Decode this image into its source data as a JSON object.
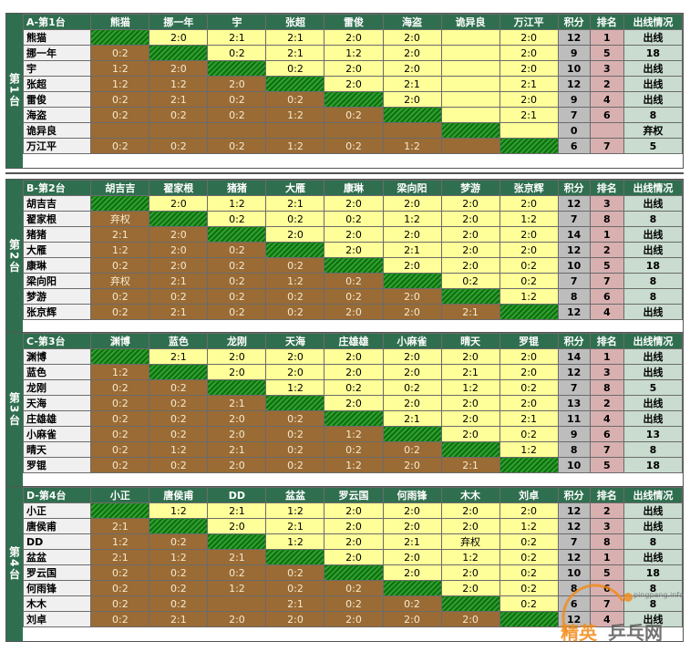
{
  "headers": {
    "points": "积分",
    "rank": "排名",
    "status": "出线情况"
  },
  "groups": [
    {
      "label": "A-第1台",
      "table_label": "第1台",
      "players": [
        "熊猫",
        "挪一年",
        "宇",
        "张超",
        "雷俊",
        "海盗",
        "诡异良",
        "万江平"
      ],
      "cells": [
        [
          "",
          "2:0",
          "2:1",
          "2:1",
          "2:0",
          "2:0",
          "",
          "2:0"
        ],
        [
          "0:2",
          "",
          "0:2",
          "2:1",
          "1:2",
          "2:0",
          "",
          "2:0"
        ],
        [
          "1:2",
          "2:0",
          "",
          "0:2",
          "2:0",
          "2:0",
          "",
          "2:0"
        ],
        [
          "1:2",
          "1:2",
          "2:0",
          "",
          "2:0",
          "2:1",
          "",
          "2:1"
        ],
        [
          "0:2",
          "2:1",
          "0:2",
          "0:2",
          "",
          "2:0",
          "",
          "2:0"
        ],
        [
          "0:2",
          "0:2",
          "0:2",
          "1:2",
          "0:2",
          "",
          "",
          "2:1"
        ],
        [
          "",
          "",
          "",
          "",
          "",
          "",
          "",
          ""
        ],
        [
          "0:2",
          "0:2",
          "0:2",
          "1:2",
          "0:2",
          "1:2",
          "",
          ""
        ]
      ],
      "points": [
        "12",
        "9",
        "10",
        "12",
        "9",
        "7",
        "0",
        "6"
      ],
      "ranks": [
        "1",
        "5",
        "3",
        "2",
        "4",
        "6",
        "",
        "7"
      ],
      "status": [
        "出线",
        "18",
        "出线",
        "出线",
        "出线",
        "8",
        "弃权",
        "5"
      ]
    },
    {
      "label": "B-第2台",
      "table_label": "第2台",
      "players": [
        "胡吉吉",
        "翟家根",
        "猪猪",
        "大雁",
        "康琳",
        "梁向阳",
        "梦游",
        "张京辉"
      ],
      "cells": [
        [
          "",
          "2:0",
          "1:2",
          "2:1",
          "2:0",
          "2:0",
          "2:0",
          "2:0"
        ],
        [
          "弃权",
          "",
          "0:2",
          "0:2",
          "0:2",
          "1:2",
          "2:0",
          "1:2"
        ],
        [
          "2:1",
          "2:0",
          "",
          "2:0",
          "2:0",
          "2:0",
          "2:0",
          "2:0"
        ],
        [
          "1:2",
          "2:0",
          "0:2",
          "",
          "2:0",
          "2:1",
          "2:0",
          "2:0"
        ],
        [
          "0:2",
          "2:0",
          "0:2",
          "0:2",
          "",
          "2:0",
          "2:0",
          "0:2"
        ],
        [
          "弃权",
          "2:1",
          "0:2",
          "1:2",
          "0:2",
          "",
          "0:2",
          "0:2"
        ],
        [
          "0:2",
          "0:2",
          "0:2",
          "0:2",
          "0:2",
          "2:0",
          "",
          "1:2"
        ],
        [
          "0:2",
          "2:1",
          "0:2",
          "0:2",
          "2:0",
          "2:0",
          "2:1",
          ""
        ]
      ],
      "points": [
        "12",
        "7",
        "14",
        "12",
        "10",
        "7",
        "8",
        "12"
      ],
      "ranks": [
        "3",
        "8",
        "1",
        "2",
        "5",
        "7",
        "6",
        "4"
      ],
      "status": [
        "出线",
        "8",
        "出线",
        "出线",
        "18",
        "8",
        "8",
        "出线"
      ]
    },
    {
      "label": "C-第3台",
      "table_label": "第3台",
      "players": [
        "渊博",
        "蓝色",
        "龙刚",
        "天海",
        "庄雄雄",
        "小麻雀",
        "晴天",
        "罗锟"
      ],
      "cells": [
        [
          "",
          "2:1",
          "2:0",
          "2:0",
          "2:0",
          "2:0",
          "2:0",
          "2:0"
        ],
        [
          "1:2",
          "",
          "2:0",
          "2:0",
          "2:0",
          "2:0",
          "2:1",
          "2:0"
        ],
        [
          "0:2",
          "0:2",
          "",
          "1:2",
          "0:2",
          "0:2",
          "1:2",
          "0:2"
        ],
        [
          "0:2",
          "0:2",
          "2:1",
          "",
          "2:0",
          "2:0",
          "2:0",
          "2:0"
        ],
        [
          "0:2",
          "0:2",
          "2:0",
          "0:2",
          "",
          "2:1",
          "2:0",
          "2:1"
        ],
        [
          "0:2",
          "0:2",
          "2:0",
          "0:2",
          "1:2",
          "",
          "2:0",
          "0:2"
        ],
        [
          "0:2",
          "1:2",
          "2:1",
          "0:2",
          "0:2",
          "0:2",
          "",
          "1:2"
        ],
        [
          "0:2",
          "0:2",
          "2:0",
          "0:2",
          "1:2",
          "2:0",
          "2:1",
          ""
        ]
      ],
      "points": [
        "14",
        "12",
        "7",
        "13",
        "11",
        "9",
        "8",
        "10"
      ],
      "ranks": [
        "1",
        "3",
        "8",
        "2",
        "4",
        "6",
        "7",
        "5"
      ],
      "status": [
        "出线",
        "出线",
        "5",
        "出线",
        "出线",
        "13",
        "8",
        "18"
      ]
    },
    {
      "label": "D-第4台",
      "table_label": "第4台",
      "players": [
        "小正",
        "唐侯甫",
        "DD",
        "盆盆",
        "罗云国",
        "何雨锋",
        "木木",
        "刘卓"
      ],
      "cells": [
        [
          "",
          "1:2",
          "2:1",
          "1:2",
          "2:0",
          "2:0",
          "2:0",
          "2:0"
        ],
        [
          "2:1",
          "",
          "2:0",
          "2:1",
          "2:0",
          "2:0",
          "2:0",
          "1:2"
        ],
        [
          "1:2",
          "0:2",
          "",
          "1:2",
          "2:0",
          "2:1",
          "弃权",
          "0:2"
        ],
        [
          "2:1",
          "1:2",
          "2:1",
          "",
          "2:0",
          "2:0",
          "1:2",
          "0:2"
        ],
        [
          "0:2",
          "0:2",
          "0:2",
          "0:2",
          "",
          "2:0",
          "2:0",
          "0:2"
        ],
        [
          "0:2",
          "0:2",
          "1:2",
          "0:2",
          "0:2",
          "",
          "2:0",
          "0:2"
        ],
        [
          "0:2",
          "0:2",
          "",
          "2:1",
          "0:2",
          "0:2",
          "",
          "0:2"
        ],
        [
          "0:2",
          "2:1",
          "2:0",
          "2:0",
          "2:0",
          "2:0",
          "2:0",
          ""
        ]
      ],
      "points": [
        "12",
        "12",
        "7",
        "12",
        "10",
        "8",
        "6",
        "12"
      ],
      "ranks": [
        "2",
        "3",
        "8",
        "1",
        "5",
        "6",
        "7",
        "4"
      ],
      "status": [
        "出线",
        "出线",
        "8",
        "出线",
        "18",
        "8",
        "8",
        "出线"
      ]
    }
  ],
  "watermark": {
    "brand": "精英乒乓网",
    "url": "pingpang.info"
  },
  "colors": {
    "header": "#2f6f4f",
    "win": "#ffff99",
    "loss": "#9a6b34",
    "self": "#1f7f1f",
    "name": "#f0f0f0"
  }
}
